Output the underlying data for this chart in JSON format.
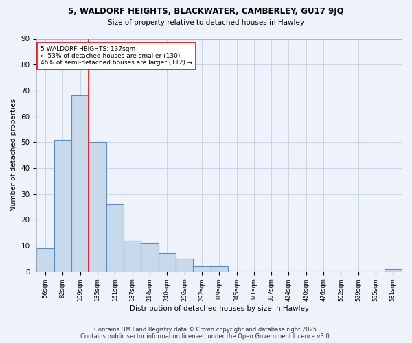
{
  "title1": "5, WALDORF HEIGHTS, BLACKWATER, CAMBERLEY, GU17 9JQ",
  "title2": "Size of property relative to detached houses in Hawley",
  "xlabel": "Distribution of detached houses by size in Hawley",
  "ylabel": "Number of detached properties",
  "categories": [
    "56sqm",
    "82sqm",
    "109sqm",
    "135sqm",
    "161sqm",
    "187sqm",
    "214sqm",
    "240sqm",
    "266sqm",
    "292sqm",
    "319sqm",
    "345sqm",
    "371sqm",
    "397sqm",
    "424sqm",
    "450sqm",
    "476sqm",
    "502sqm",
    "529sqm",
    "555sqm",
    "581sqm"
  ],
  "values": [
    9,
    51,
    68,
    50,
    26,
    12,
    11,
    7,
    5,
    2,
    2,
    0,
    0,
    0,
    0,
    0,
    0,
    0,
    0,
    0,
    1
  ],
  "bar_color": "#c9d9ec",
  "bar_edge_color": "#5b8cc8",
  "grid_color": "#c8d4e8",
  "background_color": "#eef2fa",
  "vline_color": "red",
  "vline_x_index": 2.5,
  "annotation_text": "5 WALDORF HEIGHTS: 137sqm\n← 53% of detached houses are smaller (130)\n46% of semi-detached houses are larger (112) →",
  "annotation_box_color": "white",
  "annotation_box_edge": "red",
  "ylim": [
    0,
    90
  ],
  "yticks": [
    0,
    10,
    20,
    30,
    40,
    50,
    60,
    70,
    80,
    90
  ],
  "footer1": "Contains HM Land Registry data © Crown copyright and database right 2025.",
  "footer2": "Contains public sector information licensed under the Open Government Licence v3.0."
}
